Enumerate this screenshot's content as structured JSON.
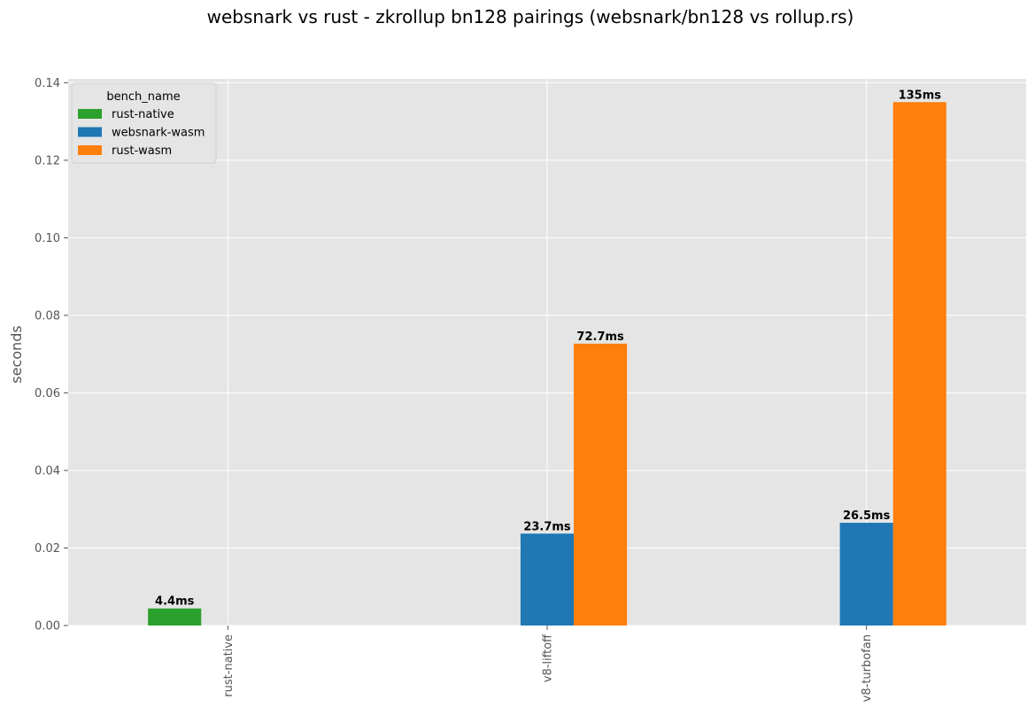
{
  "chart_data": {
    "type": "bar",
    "title": "websnark vs rust - zkrollup bn128 pairings (websnark/bn128 vs rollup.rs)",
    "xlabel": "",
    "ylabel": "seconds",
    "categories": [
      "rust-native",
      "v8-liftoff",
      "v8-turbofan"
    ],
    "series": [
      {
        "name": "rust-native",
        "color": "#2ca02c",
        "values": [
          0.0044,
          null,
          null
        ],
        "labels": [
          "4.4ms",
          null,
          null
        ]
      },
      {
        "name": "websnark-wasm",
        "color": "#1f77b4",
        "values": [
          null,
          0.0237,
          0.0265
        ],
        "labels": [
          null,
          "23.7ms",
          "26.5ms"
        ]
      },
      {
        "name": "rust-wasm",
        "color": "#ff7f0e",
        "values": [
          null,
          0.0727,
          0.135
        ],
        "labels": [
          null,
          "72.7ms",
          "135ms"
        ]
      }
    ],
    "ylim": [
      0,
      0.141
    ],
    "yticks": [
      "0.00",
      "0.02",
      "0.04",
      "0.06",
      "0.08",
      "0.10",
      "0.12",
      "0.14"
    ],
    "grid": true,
    "legend": {
      "title": "bench_name",
      "placement": "top-left"
    },
    "style": {
      "background": "#e5e5e5",
      "grid_color": "#ffffff"
    }
  }
}
